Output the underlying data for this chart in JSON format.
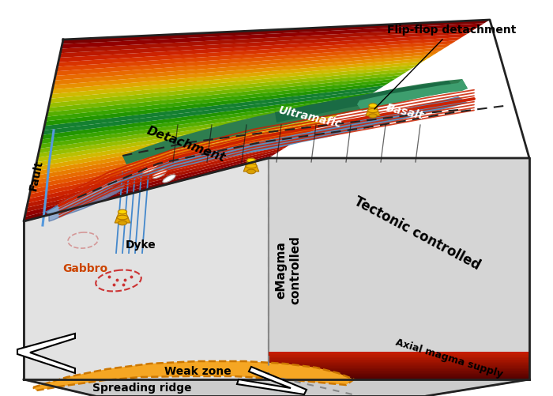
{
  "fig_width": 7.0,
  "fig_height": 5.01,
  "dpi": 100,
  "bg_color": "#ffffff",
  "labels": {
    "flip_flop": "Flip-flop detachment",
    "fault": "Fault",
    "detachment": "Detachment",
    "ultramafic": "Ultramafic",
    "basalt": "Basalt",
    "dyke": "Dyke",
    "gabbro": "Gabbro",
    "weak_zone": "Weak zone",
    "spreading_ridge": "Spreading ridge",
    "emagma": "eMagma\ncontrolled",
    "tectonic": "Tectonic controlled",
    "axial_magma": "Axial magma supply"
  },
  "colors": {
    "terrain_red": "#cc3300",
    "box_face_light": "#e8e8e8",
    "box_face_gray": "#d0d0d0",
    "weak_zone_fill": "#f5a623",
    "weak_zone_border": "#cc7700",
    "axial_magma_red": "#cc2200",
    "axial_magma_dark": "#8b0000",
    "fault_blue": "#5599dd",
    "gabbro_red": "#cc3333",
    "dashed_line": "#222222",
    "red_line": "#cc2200",
    "black": "#000000",
    "white": "#ffffff"
  }
}
